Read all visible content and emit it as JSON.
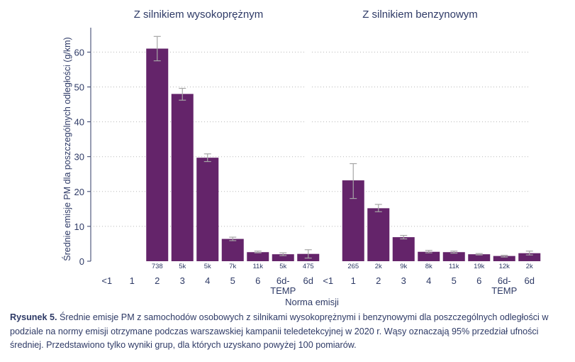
{
  "chart_data": {
    "type": "bar",
    "ylabel": "Średnie emisje PM dla poszczególnych odległości (g/km)",
    "xlabel": "Norma emisji",
    "ylim": [
      0,
      67
    ],
    "yticks": [
      0,
      10,
      20,
      30,
      40,
      50,
      60
    ],
    "grid": "horizontal dotted",
    "bar_color": "#64246a",
    "errorbar_color": "#a6a6a6",
    "categories": [
      "<1",
      "1",
      "2",
      "3",
      "4",
      "5",
      "6",
      "6d-TEMP",
      "6d"
    ],
    "panels": [
      {
        "title": "Z silnikiem wysokoprężnym",
        "values": [
          null,
          null,
          61,
          48,
          29.7,
          6.4,
          2.6,
          2.0,
          2.1
        ],
        "err_low": [
          null,
          null,
          57.5,
          46.2,
          28.6,
          5.9,
          2.4,
          1.6,
          0.9
        ],
        "err_high": [
          null,
          null,
          64.5,
          49.6,
          30.8,
          6.9,
          2.9,
          2.4,
          3.3
        ],
        "counts": [
          "",
          "",
          "738",
          "5k",
          "5k",
          "7k",
          "11k",
          "5k",
          "475"
        ]
      },
      {
        "title": "Z silnikiem benzynowym",
        "values": [
          null,
          23.2,
          15.2,
          6.9,
          2.7,
          2.6,
          2.0,
          1.5,
          2.3
        ],
        "err_low": [
          null,
          18.0,
          14.2,
          6.4,
          2.4,
          2.3,
          1.8,
          1.2,
          1.8
        ],
        "err_high": [
          null,
          28.0,
          16.3,
          7.4,
          3.1,
          2.9,
          2.2,
          1.7,
          2.9
        ],
        "counts": [
          "",
          "265",
          "2k",
          "9k",
          "8k",
          "11k",
          "19k",
          "12k",
          "2k"
        ]
      }
    ]
  },
  "caption": {
    "label": "Rysunek 5.",
    "text": " Średnie emisje PM z samochodów osobowych z silnikami wysokoprężnymi i benzynowymi dla poszczególnych odległości w podziale na normy emisji otrzymane podczas warszawskiej kampanii teledetekcyjnej w 2020 r. Wąsy oznaczają 95% przedział ufności średniej. Przedstawiono tylko wyniki grup, dla których uzyskano powyżej 100 pomiarów."
  }
}
